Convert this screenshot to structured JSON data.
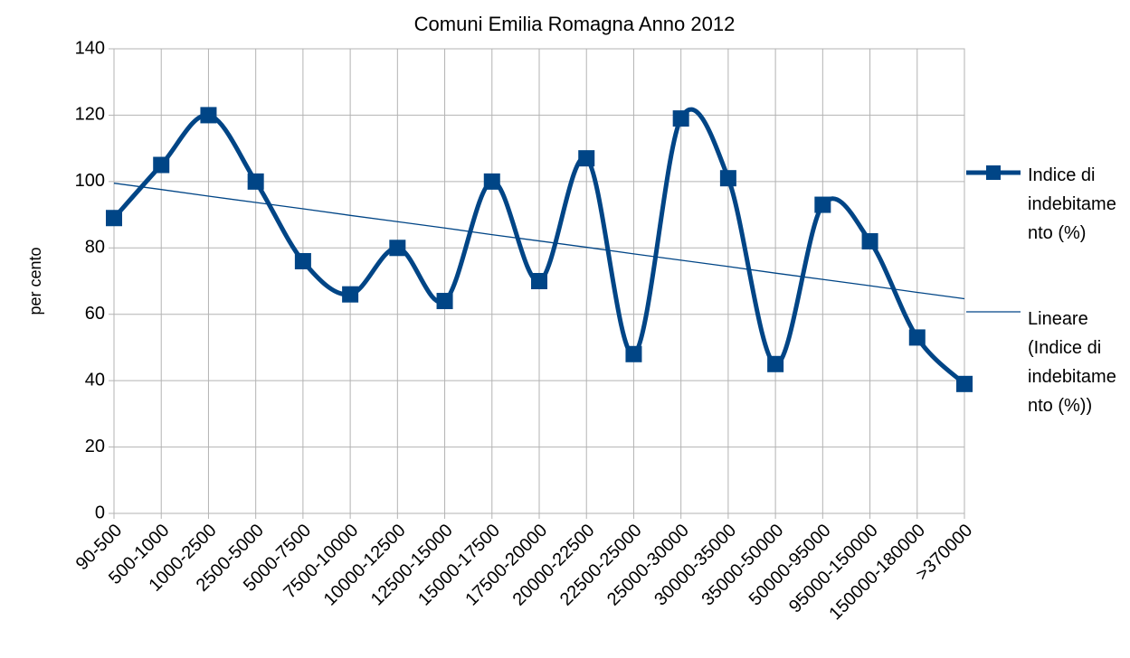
{
  "chart_data": {
    "type": "line",
    "title": "Comuni Emilia Romagna  Anno 2012",
    "y_label": "per cento",
    "categories": [
      "90-500",
      "500-1000",
      "1000-2500",
      "2500-5000",
      "5000-7500",
      "7500-10000",
      "10000-12500",
      "12500-15000",
      "15000-17500",
      "17500-20000",
      "20000-22500",
      "22500-25000",
      "25000-30000",
      "30000-35000",
      "35000-50000",
      "50000-95000",
      "95000-150000",
      "150000-180000",
      ">370000"
    ],
    "series": [
      {
        "name": "Indice di indebitamento (%)",
        "color": "#004586",
        "smooth": true,
        "marker": "square",
        "values": [
          89,
          105,
          120,
          100,
          76,
          66,
          80,
          64,
          100,
          70,
          107,
          48,
          119,
          101,
          45,
          93,
          82,
          53,
          39
        ]
      },
      {
        "name": "Lineare (Indice di indebitamento (%))",
        "color": "#004586",
        "smooth": false,
        "marker": null,
        "values": [
          99.5,
          97.6,
          95.6,
          93.7,
          91.8,
          89.8,
          87.9,
          86.0,
          84.0,
          82.1,
          80.2,
          78.2,
          76.3,
          74.4,
          72.4,
          70.5,
          68.6,
          66.6,
          64.7
        ]
      }
    ],
    "ylim": [
      0,
      140
    ],
    "yticks": [
      0,
      20,
      40,
      60,
      80,
      100,
      120,
      140
    ],
    "grid": true,
    "legend": "right"
  }
}
